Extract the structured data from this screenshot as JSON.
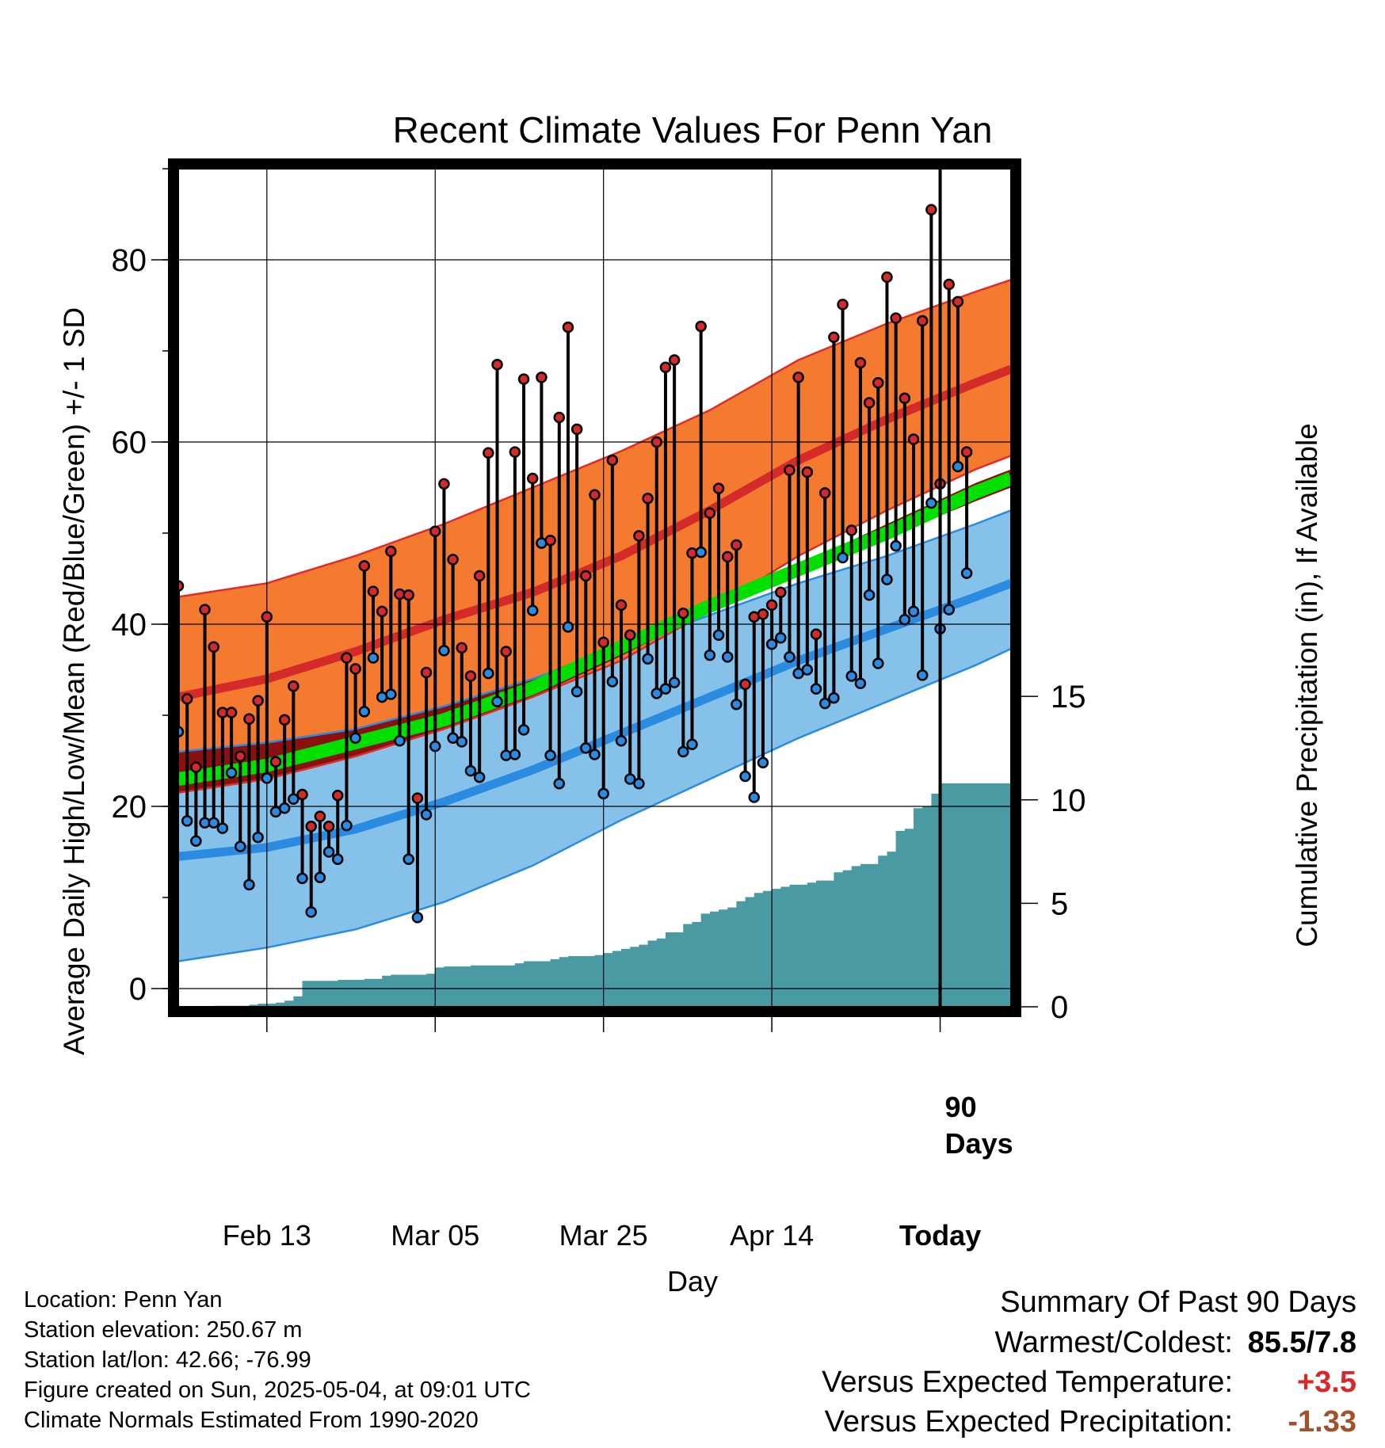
{
  "colors": {
    "high_band": "#f47a30",
    "high_edge": "#e02b2b",
    "high_mean": "#d42a2a",
    "low_band": "#85c1e8",
    "low_edge": "#2a8be0",
    "low_mean": "#2a8be0",
    "mean_band": "#8b1010",
    "mean_line": "#00e000",
    "precip": "#4a9aa4",
    "high_dot": "#d42a2a",
    "low_dot": "#2a8be0",
    "positive_anomaly": "#d42a2a",
    "negative_anomaly": "#a0522d"
  },
  "chart_data": {
    "type": "line",
    "title": "Recent Climate Values For Penn Yan",
    "xlabel": "Day",
    "ylabel": "Average Daily High/Low/Mean (Red/Blue/Green) +/- 1 SD",
    "y2label": "Cumulative Precipitation (in), If Available",
    "xlim_days": [
      1,
      95
    ],
    "x_ticks": [
      {
        "day": 11,
        "label": "Feb 13"
      },
      {
        "day": 30,
        "label": "Mar 05"
      },
      {
        "day": 49,
        "label": "Mar 25"
      },
      {
        "day": 68,
        "label": "Apr 14"
      },
      {
        "day": 87,
        "label": "Today"
      }
    ],
    "ylim": [
      -2,
      90
    ],
    "y_ticks": [
      0,
      20,
      40,
      60,
      80
    ],
    "y2lim": [
      0,
      40.5
    ],
    "y2_ticks": [
      0,
      5,
      10,
      15
    ],
    "grid": true,
    "today_marker": {
      "day": 87,
      "label": "90\nDays"
    },
    "normals": {
      "days": [
        1,
        11,
        21,
        31,
        41,
        51,
        61,
        71,
        81,
        91,
        95
      ],
      "high_mean": [
        32,
        34,
        37,
        40.5,
        43.5,
        47.5,
        52.5,
        58,
        62.5,
        66.5,
        68
      ],
      "high_upper": [
        43,
        44.5,
        47.5,
        51,
        55,
        59,
        63.5,
        69,
        73,
        76.5,
        77.8
      ],
      "high_lower": [
        21.5,
        23,
        25.5,
        28.5,
        32,
        36,
        41.5,
        47.5,
        52.5,
        57,
        58.5
      ],
      "low_mean": [
        14.5,
        15.5,
        17.5,
        20.5,
        24,
        28,
        32,
        36,
        39.5,
        43,
        44.5
      ],
      "low_upper": [
        26,
        27,
        28.5,
        31,
        34,
        37.5,
        41,
        44.5,
        47.5,
        51,
        52.5
      ],
      "low_lower": [
        3,
        4.5,
        6.5,
        9.5,
        13.5,
        18.5,
        23,
        27.5,
        31.5,
        35.5,
        37.3
      ],
      "mean_mean": [
        23,
        24.5,
        27,
        29.5,
        33,
        37.5,
        42,
        46,
        50,
        54.5,
        56
      ],
      "mean_upper": [
        26,
        27,
        28.5,
        31,
        34,
        38,
        42.5,
        46.5,
        51,
        55.5,
        57
      ],
      "mean_lower": [
        21.5,
        23,
        25.5,
        28.5,
        32,
        36.5,
        41.5,
        45.5,
        49.5,
        53.5,
        55
      ]
    },
    "observations": {
      "start_day": 1,
      "high": [
        44.2,
        31.8,
        24.3,
        41.6,
        37.5,
        30.3,
        30.3,
        25.5,
        29.6,
        31.6,
        40.8,
        24.9,
        29.5,
        33.2,
        21.3,
        17.8,
        18.9,
        17.8,
        21.2,
        36.3,
        35.1,
        46.4,
        43.6,
        41.4,
        48.0,
        43.3,
        43.2,
        20.9,
        34.7,
        50.2,
        55.4,
        47.1,
        37.4,
        34.3,
        45.3,
        58.8,
        68.5,
        37.0,
        58.9,
        66.9,
        56.0,
        67.1,
        49.2,
        62.7,
        72.6,
        61.4,
        45.3,
        54.2,
        38.0,
        58.0,
        42.1,
        38.8,
        49.7,
        53.8,
        60.0,
        68.2,
        69.0,
        41.2,
        47.8,
        72.7,
        52.2,
        54.9,
        47.4,
        48.7,
        33.4,
        40.8,
        41.1,
        42.1,
        43.5,
        56.9,
        67.1,
        56.7,
        38.9,
        54.4,
        71.5,
        75.1,
        50.3,
        68.7,
        64.3,
        66.5,
        78.1,
        73.6,
        64.8,
        60.3,
        73.3,
        85.5,
        55.4,
        77.3,
        75.4,
        58.9
      ],
      "low": [
        28.2,
        18.4,
        16.2,
        18.2,
        18.2,
        17.6,
        23.7,
        15.6,
        11.4,
        16.6,
        23.1,
        19.4,
        19.8,
        20.8,
        12.1,
        8.4,
        12.2,
        15.0,
        14.2,
        17.9,
        27.5,
        30.4,
        36.3,
        32.0,
        32.3,
        27.2,
        14.2,
        7.8,
        19.1,
        26.6,
        37.1,
        27.5,
        27.1,
        23.9,
        23.2,
        34.6,
        31.5,
        25.6,
        25.7,
        28.4,
        41.5,
        48.9,
        25.6,
        22.5,
        39.7,
        32.6,
        26.4,
        25.7,
        21.4,
        33.7,
        27.2,
        23.0,
        22.5,
        36.2,
        32.4,
        32.9,
        33.6,
        26.0,
        26.8,
        47.9,
        36.6,
        38.8,
        36.4,
        31.2,
        23.3,
        21.0,
        24.8,
        37.8,
        38.5,
        36.4,
        34.6,
        35.0,
        32.9,
        31.3,
        31.9,
        47.3,
        34.3,
        33.5,
        43.2,
        35.7,
        44.9,
        48.6,
        40.5,
        41.4,
        34.4,
        53.3,
        39.5,
        41.6,
        57.3,
        45.6
      ]
    },
    "precip_cumulative": {
      "days": [
        1,
        4,
        5,
        9,
        10,
        12,
        13,
        14,
        15,
        19,
        22,
        24,
        25,
        29,
        30,
        31,
        34,
        39,
        40,
        43,
        44,
        45,
        48,
        49,
        50,
        51,
        52,
        53,
        54,
        55,
        56,
        58,
        59,
        60,
        61,
        62,
        63,
        64,
        65,
        66,
        67,
        68,
        69,
        70,
        72,
        73,
        75,
        76,
        77,
        78,
        80,
        81,
        82,
        83,
        84,
        85,
        86,
        87,
        95
      ],
      "values": [
        0,
        0,
        0.05,
        0.1,
        0.15,
        0.2,
        0.3,
        0.5,
        1.25,
        1.3,
        1.35,
        1.5,
        1.55,
        1.6,
        1.9,
        1.95,
        2.0,
        2.1,
        2.2,
        2.3,
        2.4,
        2.45,
        2.5,
        2.6,
        2.7,
        2.8,
        2.9,
        3.0,
        3.2,
        3.3,
        3.6,
        4.0,
        4.1,
        4.5,
        4.6,
        4.7,
        4.8,
        5.1,
        5.3,
        5.5,
        5.6,
        5.7,
        5.8,
        5.9,
        6.0,
        6.1,
        6.5,
        6.6,
        6.8,
        6.9,
        7.3,
        7.5,
        8.5,
        8.6,
        9.6,
        9.7,
        10.3,
        10.8,
        10.8
      ]
    }
  },
  "meta_lines": [
    "Location: Penn Yan",
    "Station elevation: 250.67 m",
    "Station lat/lon: 42.66; -76.99",
    "Figure created on Sun, 2025-05-04, at 09:01 UTC",
    "Climate Normals Estimated From 1990-2020"
  ],
  "summary": {
    "title": "Summary Of Past 90 Days",
    "warmest_coldest_label": "Warmest/Coldest:",
    "warmest_coldest_value": "85.5/7.8",
    "temp_label": "Versus Expected Temperature:",
    "temp_value": "+3.5",
    "precip_label": "Versus Expected Precipitation:",
    "precip_value": "-1.33"
  }
}
